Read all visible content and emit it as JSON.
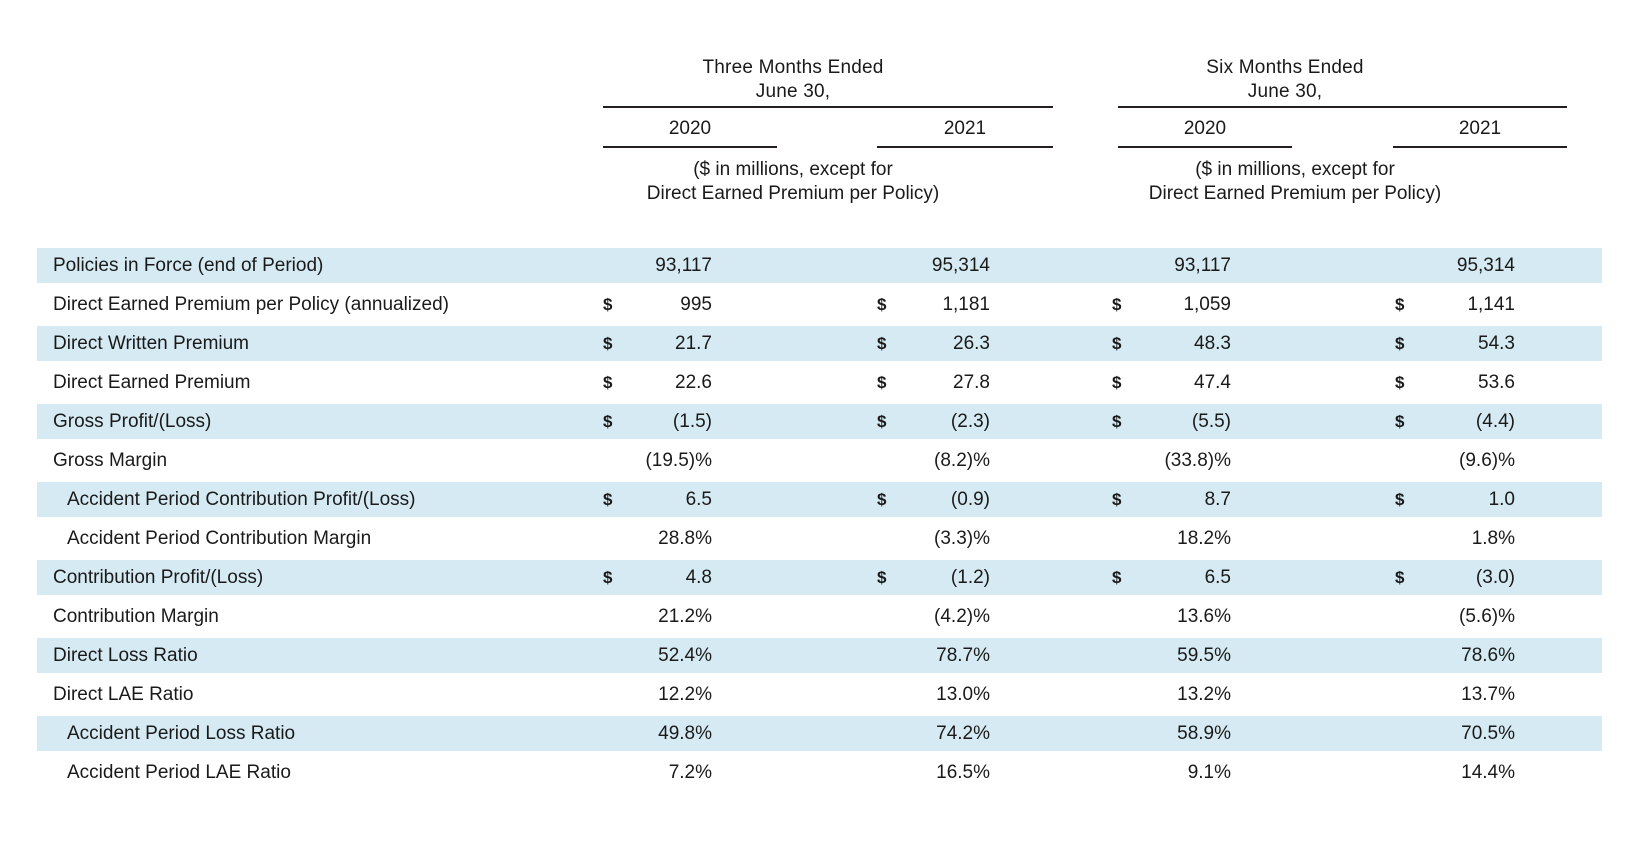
{
  "currency_symbol": "$",
  "colors": {
    "row_shade": "#d5eaf2",
    "rule": "#231f20",
    "text": "#1a1a1a"
  },
  "header": {
    "groups": [
      {
        "title_line1": "Three Months Ended",
        "title_line2": "June 30,",
        "years": [
          "2020",
          "2021"
        ],
        "note_line1": "($ in millions, except for",
        "note_line2": "Direct Earned Premium per Policy)"
      },
      {
        "title_line1": "Six Months Ended",
        "title_line2": "June 30,",
        "years": [
          "2020",
          "2021"
        ],
        "note_line1": "($ in millions, except for",
        "note_line2": "Direct Earned Premium per Policy)"
      }
    ]
  },
  "rows": [
    {
      "label": "Policies in Force (end of Period)",
      "shaded": true,
      "indent": false,
      "currency": false,
      "values": [
        "93,117",
        "95,314",
        "93,117",
        "95,314"
      ]
    },
    {
      "label": "Direct Earned Premium per Policy (annualized)",
      "shaded": false,
      "indent": false,
      "currency": true,
      "values": [
        "995",
        "1,181",
        "1,059",
        "1,141"
      ]
    },
    {
      "label": "Direct Written Premium",
      "shaded": true,
      "indent": false,
      "currency": true,
      "values": [
        "21.7",
        "26.3",
        "48.3",
        "54.3"
      ]
    },
    {
      "label": "Direct Earned Premium",
      "shaded": false,
      "indent": false,
      "currency": true,
      "values": [
        "22.6",
        "27.8",
        "47.4",
        "53.6"
      ]
    },
    {
      "label": "Gross Profit/(Loss)",
      "shaded": true,
      "indent": false,
      "currency": true,
      "values": [
        "(1.5)",
        "(2.3)",
        "(5.5)",
        "(4.4)"
      ]
    },
    {
      "label": "Gross Margin",
      "shaded": false,
      "indent": false,
      "currency": false,
      "values": [
        "(19.5)%",
        "(8.2)%",
        "(33.8)%",
        "(9.6)%"
      ]
    },
    {
      "label": "Accident Period Contribution Profit/(Loss)",
      "shaded": true,
      "indent": true,
      "currency": true,
      "values": [
        "6.5",
        "(0.9)",
        "8.7",
        "1.0"
      ]
    },
    {
      "label": "Accident Period Contribution Margin",
      "shaded": false,
      "indent": true,
      "currency": false,
      "values": [
        "28.8%",
        "(3.3)%",
        "18.2%",
        "1.8%"
      ]
    },
    {
      "label": "Contribution Profit/(Loss)",
      "shaded": true,
      "indent": false,
      "currency": true,
      "values": [
        "4.8",
        "(1.2)",
        "6.5",
        "(3.0)"
      ]
    },
    {
      "label": "Contribution Margin",
      "shaded": false,
      "indent": false,
      "currency": false,
      "values": [
        "21.2%",
        "(4.2)%",
        "13.6%",
        "(5.6)%"
      ]
    },
    {
      "label": "Direct Loss Ratio",
      "shaded": true,
      "indent": false,
      "currency": false,
      "values": [
        "52.4%",
        "78.7%",
        "59.5%",
        "78.6%"
      ]
    },
    {
      "label": "Direct LAE Ratio",
      "shaded": false,
      "indent": false,
      "currency": false,
      "values": [
        "12.2%",
        "13.0%",
        "13.2%",
        "13.7%"
      ]
    },
    {
      "label": "Accident Period Loss Ratio",
      "shaded": true,
      "indent": true,
      "currency": false,
      "values": [
        "49.8%",
        "74.2%",
        "58.9%",
        "70.5%"
      ]
    },
    {
      "label": "Accident Period LAE Ratio",
      "shaded": false,
      "indent": true,
      "currency": false,
      "values": [
        "7.2%",
        "16.5%",
        "9.1%",
        "14.4%"
      ]
    }
  ]
}
